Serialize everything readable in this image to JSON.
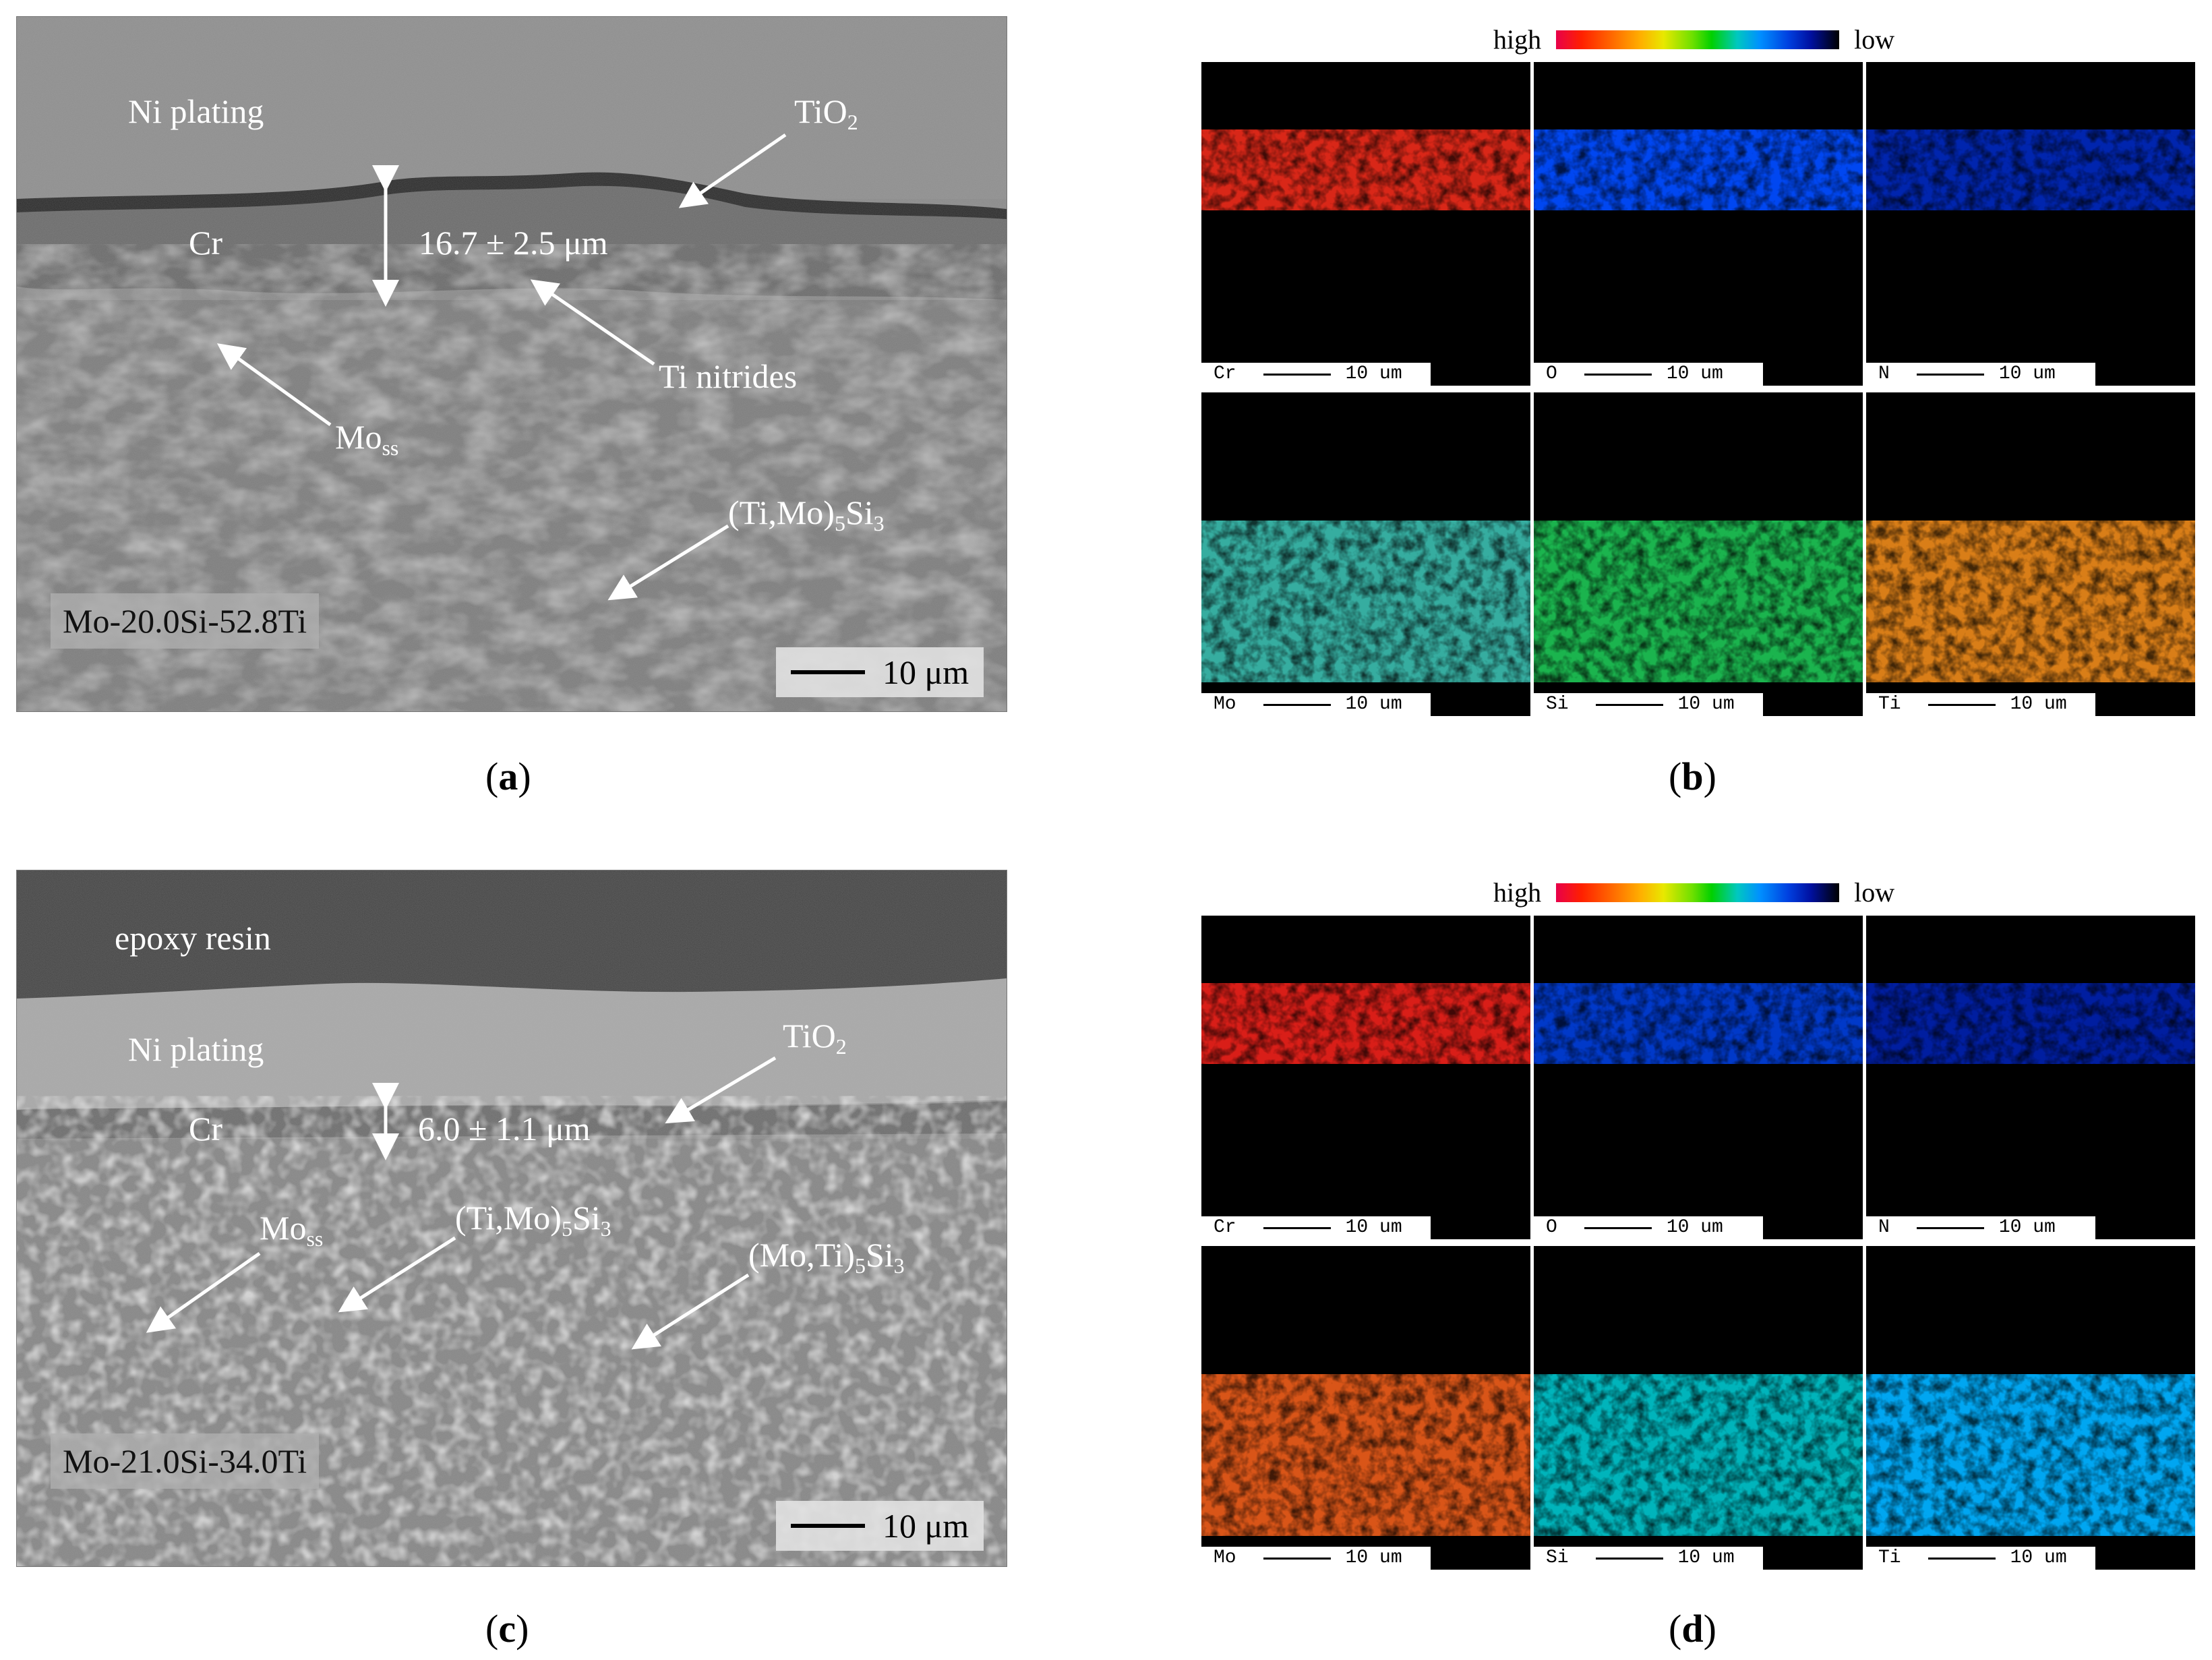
{
  "panels": {
    "a": {
      "caption": "a",
      "labels": {
        "ni": "Ni plating",
        "tio2_main": "TiO",
        "tio2_sub": "2",
        "cr": "Cr",
        "thickness": "16.7 ± 2.5 μm",
        "nitrides": "Ti nitrides",
        "moss_main": "Mo",
        "moss_sub": "ss",
        "silicide_pre": "(Ti,Mo)",
        "silicide_sub1": "5",
        "silicide_mid": "Si",
        "silicide_sub2": "3"
      },
      "composition": "Mo-20.0Si-52.8Ti",
      "scale": "10 μm"
    },
    "b": {
      "caption": "b",
      "legend_high": "high",
      "legend_low": "low",
      "maps": [
        {
          "element": "Cr",
          "scale": "10 um"
        },
        {
          "element": "O",
          "scale": "10 um"
        },
        {
          "element": "N",
          "scale": "10 um"
        },
        {
          "element": "Mo",
          "scale": "10 um"
        },
        {
          "element": "Si",
          "scale": "10 um"
        },
        {
          "element": "Ti",
          "scale": "10 um"
        }
      ]
    },
    "c": {
      "caption": "c",
      "labels": {
        "epoxy": "epoxy resin",
        "ni": "Ni plating",
        "tio2_main": "TiO",
        "tio2_sub": "2",
        "cr": "Cr",
        "thickness": "6.0 ± 1.1 μm",
        "moss_main": "Mo",
        "moss_sub": "ss",
        "s1_pre": "(Ti,Mo)",
        "s1_sub1": "5",
        "s1_mid": "Si",
        "s1_sub2": "3",
        "s2_pre": "(Mo,Ti)",
        "s2_sub1": "5",
        "s2_mid": "Si",
        "s2_sub2": "3"
      },
      "composition": "Mo-21.0Si-34.0Ti",
      "scale": "10 μm"
    },
    "d": {
      "caption": "d",
      "legend_high": "high",
      "legend_low": "low",
      "maps": [
        {
          "element": "Cr",
          "scale": "10 um"
        },
        {
          "element": "O",
          "scale": "10 um"
        },
        {
          "element": "N",
          "scale": "10 um"
        },
        {
          "element": "Mo",
          "scale": "10 um"
        },
        {
          "element": "Si",
          "scale": "10 um"
        },
        {
          "element": "Ti",
          "scale": "10 um"
        }
      ]
    }
  }
}
